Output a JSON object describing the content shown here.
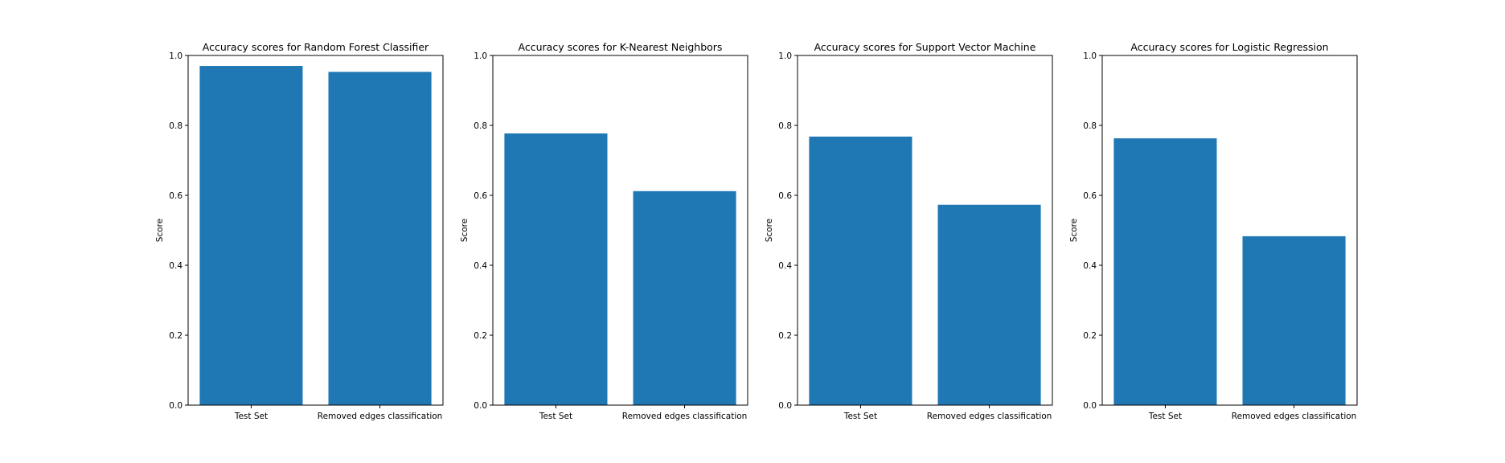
{
  "chart_data": [
    {
      "type": "bar",
      "title": "Accuracy scores for Random Forest Classifier",
      "categories": [
        "Test Set",
        "Removed edges classification"
      ],
      "values": [
        0.97,
        0.953
      ],
      "xlabel": "",
      "ylabel": "Score",
      "ylim": [
        0,
        1
      ],
      "yticks": [
        "0.0",
        "0.2",
        "0.4",
        "0.6",
        "0.8",
        "1.0"
      ],
      "grid": false,
      "bar_color": "#1f77b4"
    },
    {
      "type": "bar",
      "title": "Accuracy scores for K-Nearest Neighbors",
      "categories": [
        "Test Set",
        "Removed edges classification"
      ],
      "values": [
        0.777,
        0.612
      ],
      "xlabel": "",
      "ylabel": "Score",
      "ylim": [
        0,
        1
      ],
      "yticks": [
        "0.0",
        "0.2",
        "0.4",
        "0.6",
        "0.8",
        "1.0"
      ],
      "grid": false,
      "bar_color": "#1f77b4"
    },
    {
      "type": "bar",
      "title": "Accuracy scores for Support Vector Machine",
      "categories": [
        "Test Set",
        "Removed edges classification"
      ],
      "values": [
        0.768,
        0.573
      ],
      "xlabel": "",
      "ylabel": "Score",
      "ylim": [
        0,
        1
      ],
      "yticks": [
        "0.0",
        "0.2",
        "0.4",
        "0.6",
        "0.8",
        "1.0"
      ],
      "grid": false,
      "bar_color": "#1f77b4"
    },
    {
      "type": "bar",
      "title": "Accuracy scores for Logistic Regression",
      "categories": [
        "Test Set",
        "Removed edges classification"
      ],
      "values": [
        0.763,
        0.483
      ],
      "xlabel": "",
      "ylabel": "Score",
      "ylim": [
        0,
        1
      ],
      "yticks": [
        "0.0",
        "0.2",
        "0.4",
        "0.6",
        "0.8",
        "1.0"
      ],
      "grid": false,
      "bar_color": "#1f77b4"
    }
  ]
}
